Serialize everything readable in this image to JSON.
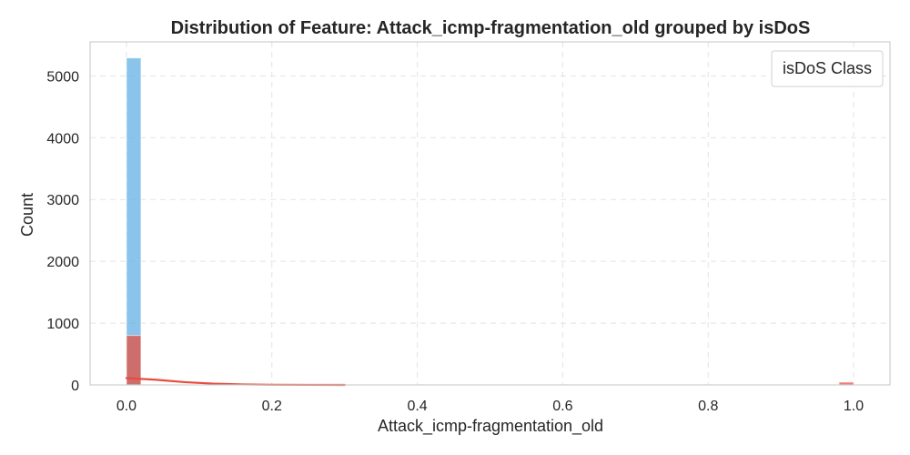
{
  "chart_data": {
    "type": "bar",
    "title": "Distribution of Feature: Attack_icmp-fragmentation_old grouped by isDoS",
    "xlabel": "Attack_icmp-fragmentation_old",
    "ylabel": "Count",
    "xlim": [
      -0.05,
      1.05
    ],
    "ylim": [
      0,
      5550
    ],
    "x_ticks": [
      0.0,
      0.2,
      0.4,
      0.6,
      0.8,
      1.0
    ],
    "x_tick_labels": [
      "0.0",
      "0.2",
      "0.4",
      "0.6",
      "0.8",
      "1.0"
    ],
    "y_ticks": [
      0,
      1000,
      2000,
      3000,
      4000,
      5000
    ],
    "y_tick_labels": [
      "0",
      "1000",
      "2000",
      "3000",
      "4000",
      "5000"
    ],
    "grid": true,
    "legend": {
      "title": "isDoS Class",
      "placement": "top-right"
    },
    "bin_width": 0.02,
    "series": [
      {
        "color": "#5dade2",
        "bins": [
          {
            "x0": 0.0,
            "x1": 0.02,
            "count": 5290
          }
        ]
      },
      {
        "color": "#e74c3c",
        "bins": [
          {
            "x0": 0.0,
            "x1": 0.02,
            "count": 800
          },
          {
            "x0": 0.98,
            "x1": 1.0,
            "count": 45
          }
        ],
        "kde": [
          [
            0.0,
            110
          ],
          [
            0.04,
            85
          ],
          [
            0.08,
            45
          ],
          [
            0.12,
            20
          ],
          [
            0.16,
            8
          ],
          [
            0.2,
            3
          ],
          [
            0.25,
            1
          ],
          [
            0.3,
            0
          ]
        ]
      }
    ]
  }
}
